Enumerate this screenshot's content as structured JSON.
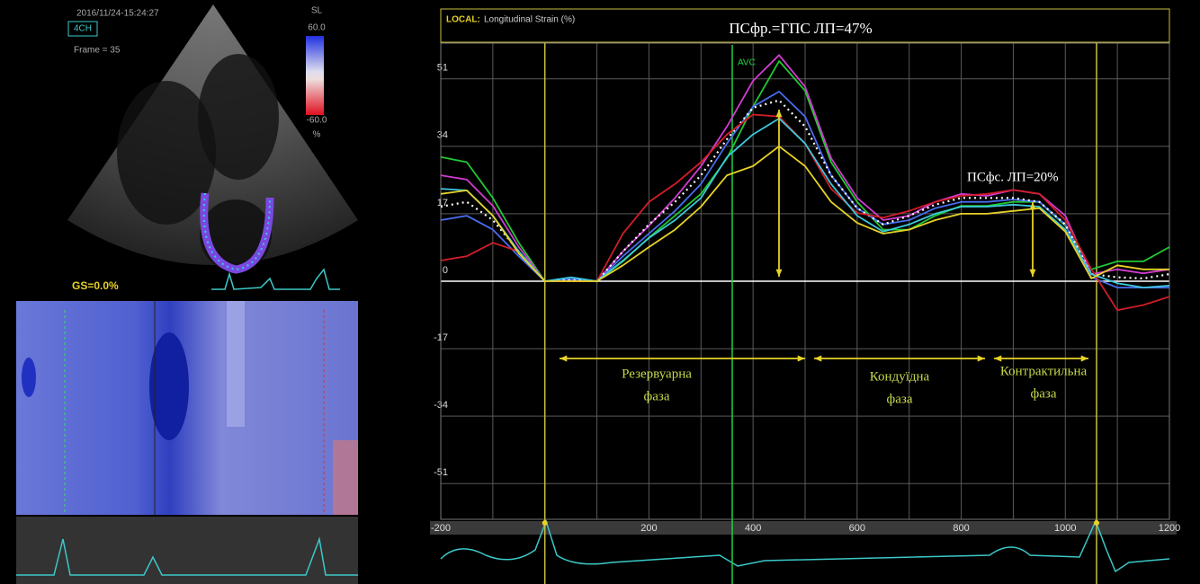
{
  "chart_data": {
    "type": "line",
    "header_tag": "LOCAL:",
    "header": "Longitudinal Strain (%)",
    "title": "ПСфр.=ГПС ЛП=47%",
    "annotation": "ПСфс. ЛП=20%",
    "avc": {
      "label": "AVC",
      "x": 360
    },
    "event_lines": [
      0,
      1060
    ],
    "phases": [
      {
        "lines": [
          "Резервуарна",
          "фаза"
        ]
      },
      {
        "lines": [
          "Кондуїдна",
          "фаза"
        ]
      },
      {
        "lines": [
          "Контрактильна",
          "фаза"
        ]
      }
    ],
    "x": [
      -200,
      -150,
      -100,
      -50,
      0,
      50,
      100,
      150,
      200,
      250,
      300,
      350,
      400,
      450,
      500,
      550,
      600,
      650,
      700,
      750,
      800,
      850,
      900,
      950,
      1000,
      1050,
      1100,
      1150,
      1200
    ],
    "series": [
      {
        "color": "#22c832",
        "values": [
          31.3,
          30,
          21,
          9.7,
          0,
          0,
          0,
          5,
          11,
          16.5,
          22,
          31,
          44,
          55.5,
          48,
          30,
          20,
          13,
          13,
          16.5,
          19,
          19,
          20,
          20,
          14,
          3,
          5,
          5,
          8.6
        ]
      },
      {
        "color": "#d23cd2",
        "values": [
          26.7,
          25.6,
          19,
          8.6,
          0,
          0.5,
          0,
          7.5,
          14,
          21,
          29,
          39,
          50.5,
          57,
          49,
          31,
          21,
          15.4,
          16.5,
          20,
          22,
          21.5,
          23,
          22,
          16.5,
          1.8,
          3,
          2,
          3
        ]
      },
      {
        "color": "#4a6cf0",
        "values": [
          15.4,
          16.5,
          13,
          6.3,
          0,
          0.5,
          0,
          6.3,
          12,
          17.7,
          24.5,
          34.7,
          44,
          47.8,
          41.5,
          26.7,
          18.4,
          14.3,
          15.4,
          18.4,
          20,
          20,
          20.6,
          20,
          14.3,
          1,
          -1.6,
          -1.6,
          -1.6
        ]
      },
      {
        "color": "#ffffff",
        "style": "dotted",
        "values": [
          18.8,
          20,
          15.4,
          7.5,
          0,
          0.3,
          0,
          7.5,
          14.3,
          20,
          26.7,
          35.8,
          43.7,
          45.6,
          39,
          26.7,
          18.4,
          14.3,
          16.5,
          19.3,
          21,
          21,
          21,
          20,
          14.3,
          1.8,
          1,
          0.7,
          1.8
        ]
      },
      {
        "color": "#d21e28",
        "values": [
          5.2,
          6.3,
          9.7,
          7.5,
          0,
          0,
          0,
          12,
          20,
          24.5,
          30,
          37,
          42,
          41.5,
          34.7,
          23.3,
          17.2,
          16,
          17.7,
          20,
          21.5,
          22,
          23,
          22,
          15.4,
          3,
          -7.3,
          -6,
          -3.9
        ]
      },
      {
        "color": "#3cc8dc",
        "values": [
          23.3,
          22.9,
          16.5,
          7.5,
          0,
          1,
          0,
          5.2,
          10.9,
          15.4,
          21,
          31.3,
          37,
          41,
          34.7,
          24.5,
          16.5,
          12.5,
          14.3,
          17,
          18.8,
          18.8,
          19.3,
          18.8,
          13,
          1.8,
          -0.5,
          -1.6,
          -1.1
        ]
      },
      {
        "color": "#e6d228",
        "values": [
          22,
          22.9,
          16.5,
          7,
          0,
          0,
          0,
          4,
          8.6,
          13,
          18.8,
          26.7,
          29,
          34,
          29,
          20,
          14.7,
          12,
          13,
          15.4,
          17,
          17,
          17.7,
          18.4,
          12.5,
          0.7,
          4,
          3,
          3
        ]
      }
    ],
    "xlim": [
      -200,
      1200
    ],
    "xticks": [
      -200,
      200,
      400,
      600,
      800,
      1000,
      1200
    ],
    "xgrid_minor": [
      -100,
      0,
      100,
      300,
      500,
      700,
      900,
      1100
    ],
    "ylim": [
      -60,
      60
    ],
    "yticks": [
      -51,
      -34,
      -17,
      0,
      17,
      34,
      51
    ],
    "grid": true
  },
  "ultrasound": {
    "timestamp": "2016/11/24-15:24:27",
    "view": "4CH",
    "frame": "Frame = 35",
    "colorbar": {
      "title": "SL",
      "max": "60.0",
      "min": "-60.0",
      "unit": "%"
    },
    "global_strain": "GS=0.0%"
  }
}
